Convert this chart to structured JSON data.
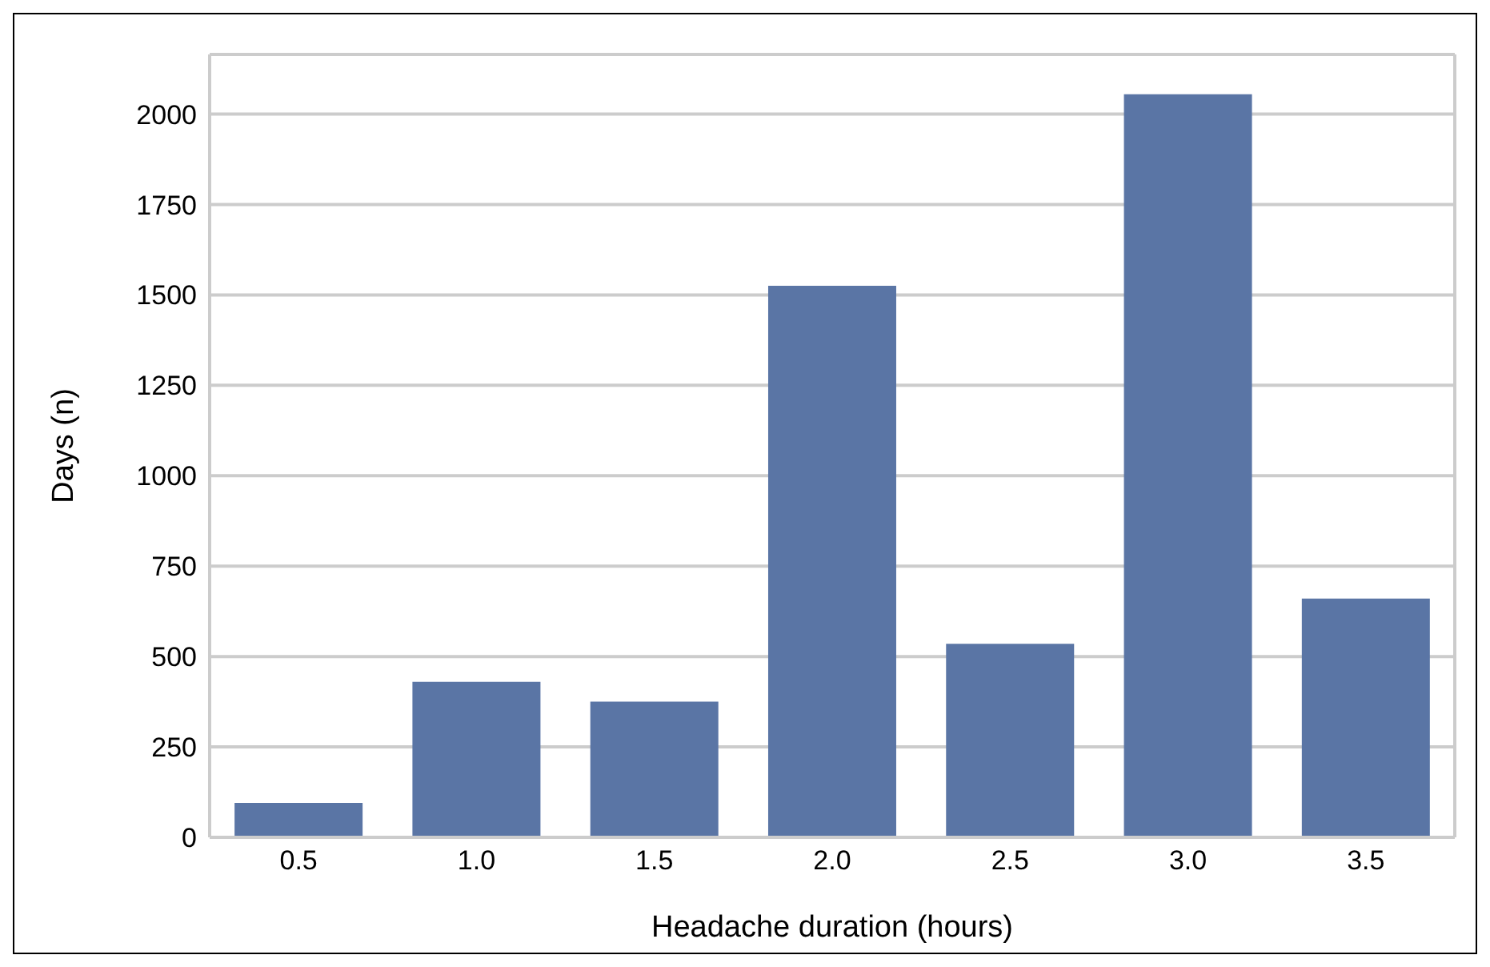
{
  "chart_data": {
    "type": "bar",
    "xlabel": "Headache duration (hours)",
    "ylabel": "Days (n)",
    "categories": [
      "0.5",
      "1.0",
      "1.5",
      "2.0",
      "2.5",
      "3.0",
      "3.5"
    ],
    "values": [
      95,
      430,
      375,
      1525,
      535,
      2055,
      660
    ],
    "color": "#5a75a5",
    "ylim": [
      0,
      2165
    ],
    "yticks": [
      0,
      250,
      500,
      750,
      1000,
      1250,
      1500,
      1750,
      2000
    ],
    "grid": "y"
  }
}
